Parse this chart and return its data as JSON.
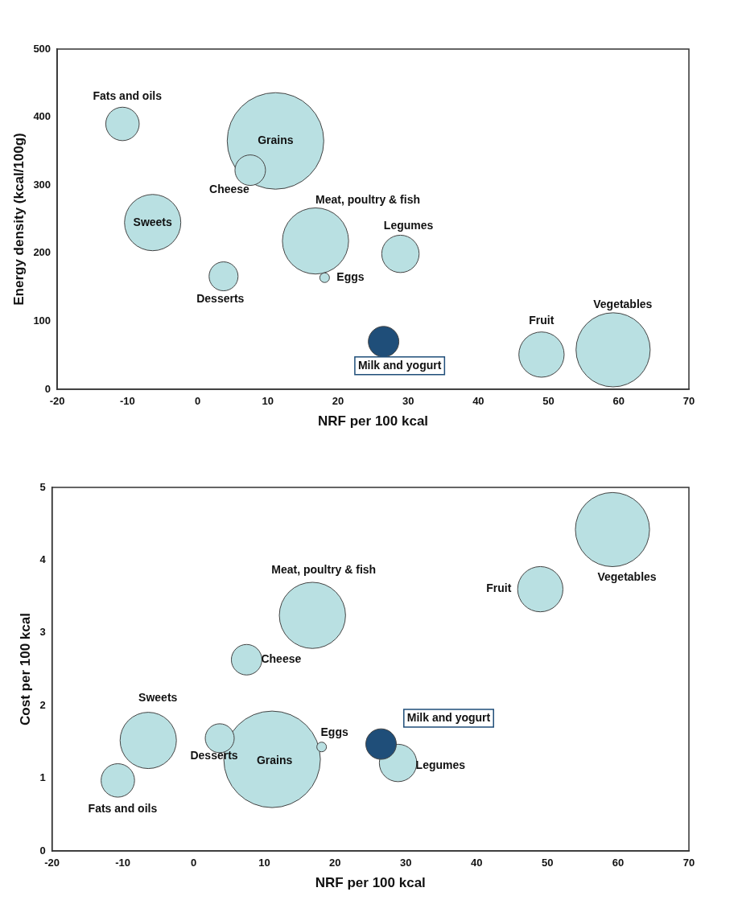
{
  "chart_data": [
    {
      "type": "bubble",
      "xlabel": "NRF per 100 kcal",
      "ylabel": "Energy density (kcal/100g)",
      "xlim": [
        -20,
        70
      ],
      "xticks": [
        -20,
        -10,
        0,
        10,
        20,
        30,
        40,
        50,
        60,
        70
      ],
      "ylim": [
        0,
        500
      ],
      "yticks": [
        0,
        100,
        200,
        300,
        400,
        500
      ],
      "series": [
        {
          "name": "Fats and oils",
          "color": "#b9e0e2",
          "x": [
            -10.7
          ],
          "values": [
            390
          ],
          "sizes": [
            0.12
          ]
        },
        {
          "name": "Grains",
          "color": "#b9e0e2",
          "x": [
            11.1
          ],
          "values": [
            365
          ],
          "sizes": [
            1
          ]
        },
        {
          "name": "Cheese",
          "color": "#b9e0e2",
          "x": [
            7.5
          ],
          "values": [
            322
          ],
          "sizes": [
            0.1
          ]
        },
        {
          "name": "Sweets",
          "color": "#b9e0e2",
          "x": [
            -6.4
          ],
          "values": [
            245
          ],
          "sizes": [
            0.34
          ]
        },
        {
          "name": "Meat, poultry & fish",
          "color": "#b9e0e2",
          "x": [
            16.8
          ],
          "values": [
            218
          ],
          "sizes": [
            0.47
          ]
        },
        {
          "name": "Legumes",
          "color": "#b9e0e2",
          "x": [
            28.9
          ],
          "values": [
            199
          ],
          "sizes": [
            0.15
          ]
        },
        {
          "name": "Desserts",
          "color": "#b9e0e2",
          "x": [
            3.7
          ],
          "values": [
            166
          ],
          "sizes": [
            0.09
          ]
        },
        {
          "name": "Eggs",
          "color": "#b9e0e2",
          "x": [
            18.1
          ],
          "values": [
            164
          ],
          "sizes": [
            0.01
          ]
        },
        {
          "name": "Milk and yogurt",
          "color": "#1f4e79",
          "x": [
            26.5
          ],
          "values": [
            70
          ],
          "sizes": [
            0.1
          ]
        },
        {
          "name": "Fruit",
          "color": "#b9e0e2",
          "x": [
            49
          ],
          "values": [
            51
          ],
          "sizes": [
            0.22
          ]
        },
        {
          "name": "Vegetables",
          "color": "#b9e0e2",
          "x": [
            59.2
          ],
          "values": [
            58
          ],
          "sizes": [
            0.59
          ]
        }
      ]
    },
    {
      "type": "bubble",
      "xlabel": "NRF per 100 kcal",
      "ylabel": "Cost per 100 kcal",
      "xlim": [
        -20,
        70
      ],
      "xticks": [
        -20,
        -10,
        0,
        10,
        20,
        30,
        40,
        50,
        60,
        70
      ],
      "ylim": [
        0,
        5
      ],
      "yticks": [
        0,
        1,
        2,
        3,
        4,
        5
      ],
      "series": [
        {
          "name": "Fats and oils",
          "color": "#b9e0e2",
          "x": [
            -10.7
          ],
          "values": [
            0.97
          ],
          "sizes": [
            0.12
          ]
        },
        {
          "name": "Grains",
          "color": "#b9e0e2",
          "x": [
            11.1
          ],
          "values": [
            1.26
          ],
          "sizes": [
            1
          ]
        },
        {
          "name": "Cheese",
          "color": "#b9e0e2",
          "x": [
            7.5
          ],
          "values": [
            2.63
          ],
          "sizes": [
            0.1
          ]
        },
        {
          "name": "Sweets",
          "color": "#b9e0e2",
          "x": [
            -6.4
          ],
          "values": [
            1.52
          ],
          "sizes": [
            0.34
          ]
        },
        {
          "name": "Meat, poultry & fish",
          "color": "#b9e0e2",
          "x": [
            16.8
          ],
          "values": [
            3.24
          ],
          "sizes": [
            0.47
          ]
        },
        {
          "name": "Legumes",
          "color": "#b9e0e2",
          "x": [
            28.9
          ],
          "values": [
            1.21
          ],
          "sizes": [
            0.15
          ]
        },
        {
          "name": "Desserts",
          "color": "#b9e0e2",
          "x": [
            3.7
          ],
          "values": [
            1.55
          ],
          "sizes": [
            0.09
          ]
        },
        {
          "name": "Eggs",
          "color": "#b9e0e2",
          "x": [
            18.1
          ],
          "values": [
            1.43
          ],
          "sizes": [
            0.01
          ]
        },
        {
          "name": "Milk and yogurt",
          "color": "#1f4e79",
          "x": [
            26.5
          ],
          "values": [
            1.47
          ],
          "sizes": [
            0.1
          ]
        },
        {
          "name": "Fruit",
          "color": "#b9e0e2",
          "x": [
            49
          ],
          "values": [
            3.6
          ],
          "sizes": [
            0.22
          ]
        },
        {
          "name": "Vegetables",
          "color": "#b9e0e2",
          "x": [
            59.2
          ],
          "values": [
            4.42
          ],
          "sizes": [
            0.59
          ]
        }
      ]
    }
  ]
}
